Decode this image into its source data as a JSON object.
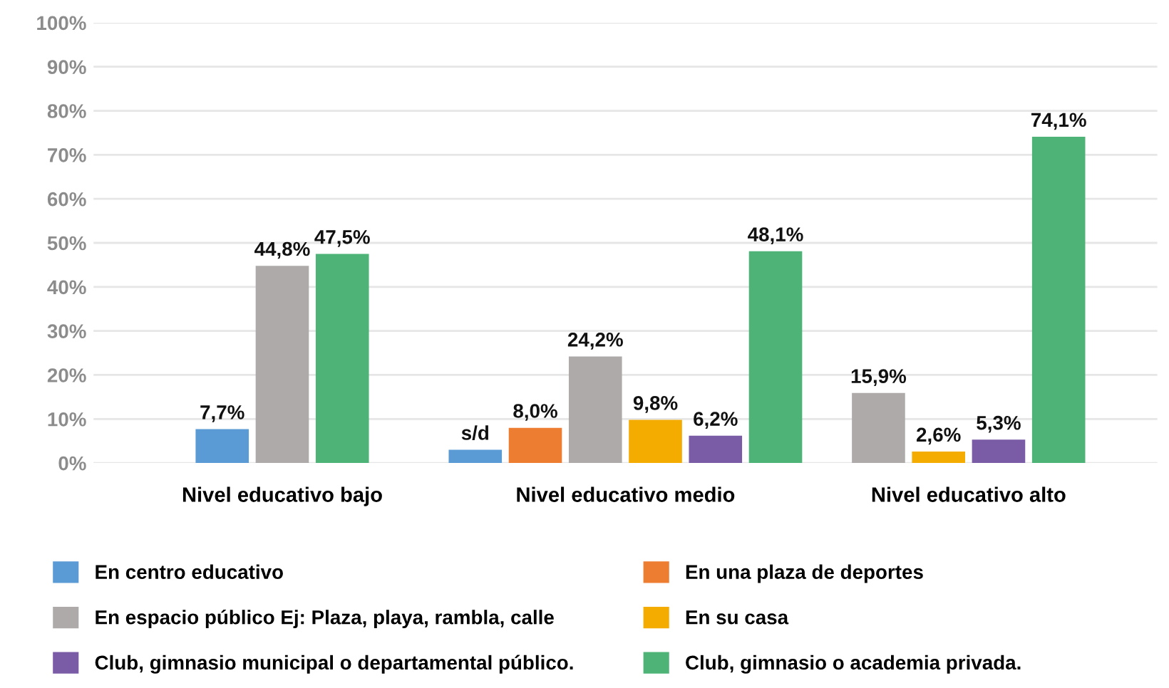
{
  "chart_data": {
    "type": "bar",
    "categories": [
      "Nivel educativo bajo",
      "Nivel educativo medio",
      "Nivel educativo alto"
    ],
    "series": [
      {
        "name": "En centro educativo",
        "color": "#5b9bd5",
        "values": [
          7.7,
          3.0,
          null
        ],
        "value_labels": [
          "7,7%",
          "s/d",
          null
        ]
      },
      {
        "name": "En una plaza de deportes",
        "color": "#ed7d31",
        "values": [
          null,
          8.0,
          null
        ],
        "value_labels": [
          null,
          "8,0%",
          null
        ]
      },
      {
        "name": "En espacio público Ej: Plaza, playa, rambla, calle",
        "color": "#aeaaaa",
        "values": [
          44.8,
          24.2,
          15.9
        ],
        "value_labels": [
          "44,8%",
          "24,2%",
          "15,9%"
        ]
      },
      {
        "name": "En su casa",
        "color": "#f5ac00",
        "values": [
          null,
          9.8,
          2.6
        ],
        "value_labels": [
          null,
          "9,8%",
          "2,6%"
        ]
      },
      {
        "name": "Club, gimnasio municipal o departamental público.",
        "color": "#7a5ba6",
        "values": [
          null,
          6.2,
          5.3
        ],
        "value_labels": [
          null,
          "6,2%",
          "5,3%"
        ]
      },
      {
        "name": "Club, gimnasio o academia privada.",
        "color": "#4db377",
        "values": [
          47.5,
          48.1,
          74.1
        ],
        "value_labels": [
          "47,5%",
          "48,1%",
          "74,1%"
        ]
      }
    ],
    "ylim": [
      0,
      100
    ],
    "yticks": [
      {
        "value": 0,
        "label": "0%"
      },
      {
        "value": 10,
        "label": "10%"
      },
      {
        "value": 20,
        "label": "20%"
      },
      {
        "value": 30,
        "label": "30%"
      },
      {
        "value": 40,
        "label": "40%"
      },
      {
        "value": 50,
        "label": "50%"
      },
      {
        "value": 60,
        "label": "60%"
      },
      {
        "value": 70,
        "label": "70%"
      },
      {
        "value": 80,
        "label": "80%"
      },
      {
        "value": 90,
        "label": "90%"
      },
      {
        "value": 100,
        "label": "100%"
      }
    ],
    "grid": "y",
    "legend": "bottom"
  }
}
